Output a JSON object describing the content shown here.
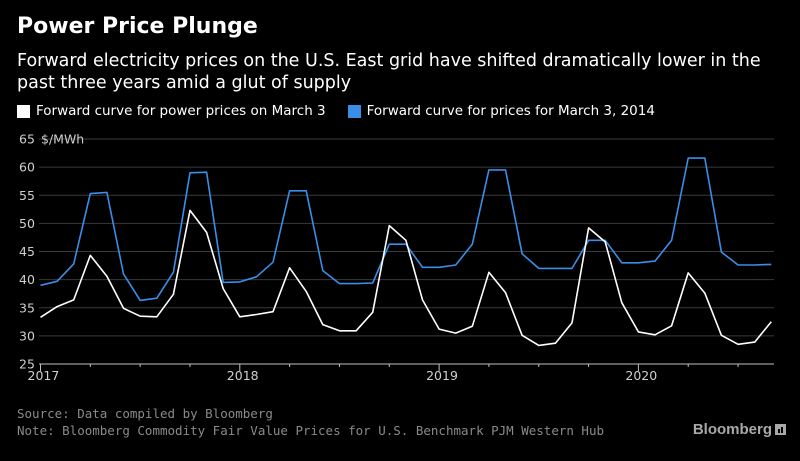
{
  "header": {
    "title": "Power Price Plunge",
    "subtitle": "Forward electricity prices on the U.S. East grid have shifted dramatically lower in the past three years amid a glut of supply"
  },
  "footer": {
    "source": "Source: Data compiled by Bloomberg",
    "note": "Note: Bloomberg Commodity Fair Value Prices for U.S. Benchmark PJM Western Hub",
    "brand": "Bloomberg"
  },
  "colors": {
    "background": "#000000",
    "series_current": "#ffffff",
    "series_2014": "#3b8ee8",
    "grid": "#3a3a3a",
    "axis_text": "#cfcfcf"
  },
  "chart_data": {
    "type": "line",
    "ylabel_unit": "$/MWh",
    "ylim": [
      25,
      65
    ],
    "yticks": [
      25,
      30,
      35,
      40,
      45,
      50,
      55,
      60,
      65
    ],
    "xlim": [
      "2017-01",
      "2020-12"
    ],
    "xticks": [
      "2017",
      "2018",
      "2019",
      "2020"
    ],
    "grid": true,
    "legend_position": "top",
    "x": [
      "2017-01",
      "2017-02",
      "2017-03",
      "2017-04",
      "2017-05",
      "2017-06",
      "2017-07",
      "2017-08",
      "2017-09",
      "2017-10",
      "2017-11",
      "2017-12",
      "2018-01",
      "2018-02",
      "2018-03",
      "2018-04",
      "2018-05",
      "2018-06",
      "2018-07",
      "2018-08",
      "2018-09",
      "2018-10",
      "2018-11",
      "2018-12",
      "2019-01",
      "2019-02",
      "2019-03",
      "2019-04",
      "2019-05",
      "2019-06",
      "2019-07",
      "2019-08",
      "2019-09",
      "2019-10",
      "2019-11",
      "2019-12",
      "2020-01",
      "2020-02",
      "2020-03",
      "2020-04",
      "2020-05",
      "2020-06",
      "2020-07",
      "2020-08",
      "2020-09",
      "2020-10",
      "2020-11",
      "2020-12"
    ],
    "series": [
      {
        "name": "Forward curve for power prices on March 3",
        "color": "#ffffff",
        "values": [
          33.3,
          35.2,
          36.4,
          44.3,
          40.6,
          34.9,
          33.5,
          33.4,
          37.4,
          52.3,
          48.4,
          38.4,
          33.4,
          33.8,
          34.3,
          42.1,
          37.9,
          32.0,
          30.9,
          30.9,
          34.2,
          49.6,
          47.0,
          36.4,
          31.2,
          30.5,
          31.7,
          41.3,
          37.7,
          30.1,
          28.3,
          28.7,
          32.3,
          49.2,
          46.7,
          35.9,
          30.7,
          30.2,
          31.8,
          41.2,
          37.6,
          30.1,
          28.5,
          28.9,
          32.5,
          null,
          null,
          null
        ]
      },
      {
        "name": "Forward curve for prices for March 3, 2014",
        "color": "#3b8ee8",
        "values": [
          39.0,
          39.7,
          42.8,
          55.3,
          55.5,
          41.0,
          36.3,
          36.7,
          41.3,
          59.0,
          59.1,
          39.5,
          39.6,
          40.5,
          43.1,
          55.8,
          55.8,
          41.6,
          39.3,
          39.3,
          39.4,
          46.3,
          46.3,
          42.2,
          42.2,
          42.6,
          46.3,
          59.5,
          59.5,
          44.6,
          42.0,
          42.0,
          42.0,
          47.0,
          47.0,
          43.0,
          43.0,
          43.3,
          47.0,
          61.6,
          61.6,
          44.9,
          42.6,
          42.6,
          42.7,
          null,
          null,
          null
        ]
      }
    ]
  }
}
